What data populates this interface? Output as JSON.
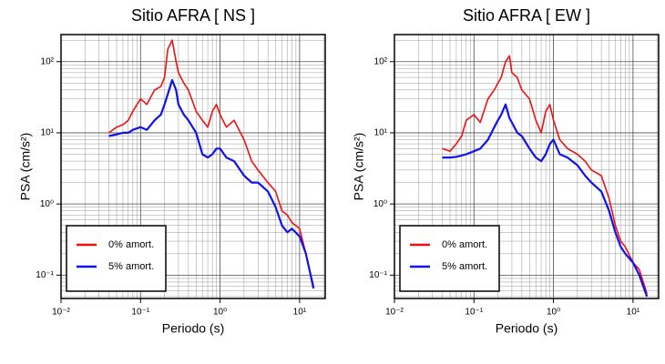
{
  "chart_data": [
    {
      "type": "line",
      "title": "Sitio AFRA [ NS ]",
      "xlabel": "Periodo (s)",
      "ylabel": "PSA (cm/s²)",
      "xscale": "log",
      "yscale": "log",
      "grid": true,
      "minor_grid": true,
      "legend": "lower left",
      "xlim": [
        0.01,
        21
      ],
      "ylim": [
        0.047,
        240
      ],
      "xticks": [
        {
          "value": 0.01,
          "label": "10⁻²"
        },
        {
          "value": 0.1,
          "label": "10⁻¹"
        },
        {
          "value": 1,
          "label": "10⁰"
        },
        {
          "value": 10,
          "label": "10¹"
        }
      ],
      "yticks": [
        {
          "value": 0.1,
          "label": "10⁻¹"
        },
        {
          "value": 1,
          "label": "10⁰"
        },
        {
          "value": 10,
          "label": "10¹"
        },
        {
          "value": 100,
          "label": "10²"
        }
      ],
      "x": [
        0.04,
        0.05,
        0.06,
        0.07,
        0.08,
        0.1,
        0.12,
        0.15,
        0.18,
        0.2,
        0.22,
        0.25,
        0.28,
        0.3,
        0.35,
        0.4,
        0.5,
        0.6,
        0.7,
        0.8,
        0.9,
        1.0,
        1.2,
        1.5,
        2,
        2.5,
        3,
        4,
        5,
        6,
        7,
        8,
        10,
        12,
        15
      ],
      "series": [
        {
          "name": "0% amort.",
          "color": "#ee1111",
          "values": [
            10,
            12,
            13,
            15,
            20,
            30,
            25,
            40,
            45,
            60,
            150,
            200,
            100,
            70,
            50,
            40,
            20,
            15,
            12,
            20,
            25,
            18,
            12,
            15,
            8,
            4,
            3,
            2,
            1.5,
            0.8,
            0.7,
            0.55,
            0.45,
            0.2,
            0.07
          ]
        },
        {
          "name": "5% amort.",
          "color": "#1111ee",
          "values": [
            9,
            9.5,
            10,
            10,
            11,
            12,
            11,
            15,
            18,
            25,
            35,
            55,
            40,
            25,
            18,
            15,
            10,
            5,
            4.5,
            5,
            6,
            6,
            4.5,
            4,
            2.5,
            2,
            2,
            1.5,
            0.9,
            0.5,
            0.4,
            0.45,
            0.35,
            0.2,
            0.065
          ]
        }
      ]
    },
    {
      "type": "line",
      "title": "Sitio AFRA [ EW ]",
      "xlabel": "Periodo (s)",
      "ylabel": "PSA (cm/s²)",
      "xscale": "log",
      "yscale": "log",
      "grid": true,
      "minor_grid": true,
      "legend": "lower left",
      "xlim": [
        0.01,
        21
      ],
      "ylim": [
        0.047,
        240
      ],
      "xticks": [
        {
          "value": 0.01,
          "label": "10⁻²"
        },
        {
          "value": 0.1,
          "label": "10⁻¹"
        },
        {
          "value": 1,
          "label": "10⁰"
        },
        {
          "value": 10,
          "label": "10¹"
        }
      ],
      "yticks": [
        {
          "value": 0.1,
          "label": "10⁻¹"
        },
        {
          "value": 1,
          "label": "10⁰"
        },
        {
          "value": 10,
          "label": "10¹"
        },
        {
          "value": 100,
          "label": "10²"
        }
      ],
      "x": [
        0.04,
        0.05,
        0.06,
        0.07,
        0.08,
        0.1,
        0.12,
        0.15,
        0.18,
        0.2,
        0.22,
        0.25,
        0.28,
        0.3,
        0.35,
        0.4,
        0.5,
        0.6,
        0.7,
        0.8,
        0.9,
        1.0,
        1.2,
        1.5,
        2,
        2.5,
        3,
        4,
        5,
        6,
        7,
        8,
        10,
        12,
        15
      ],
      "series": [
        {
          "name": "0% amort.",
          "color": "#ee1111",
          "values": [
            6,
            5.5,
            7,
            9,
            15,
            18,
            14,
            30,
            40,
            50,
            60,
            100,
            120,
            70,
            60,
            40,
            30,
            15,
            10,
            20,
            25,
            15,
            8,
            6,
            5,
            4,
            3,
            2.5,
            1.2,
            0.5,
            0.3,
            0.25,
            0.15,
            0.12,
            0.055
          ]
        },
        {
          "name": "5% amort.",
          "color": "#1111ee",
          "values": [
            4.5,
            4.5,
            4.6,
            4.8,
            5,
            5.5,
            6,
            8,
            12,
            15,
            18,
            25,
            16,
            14,
            10,
            9,
            6,
            4.5,
            4,
            5,
            7,
            8,
            5,
            4.5,
            3.5,
            2.5,
            2,
            1.5,
            0.8,
            0.4,
            0.25,
            0.2,
            0.15,
            0.1,
            0.05
          ]
        }
      ]
    }
  ]
}
